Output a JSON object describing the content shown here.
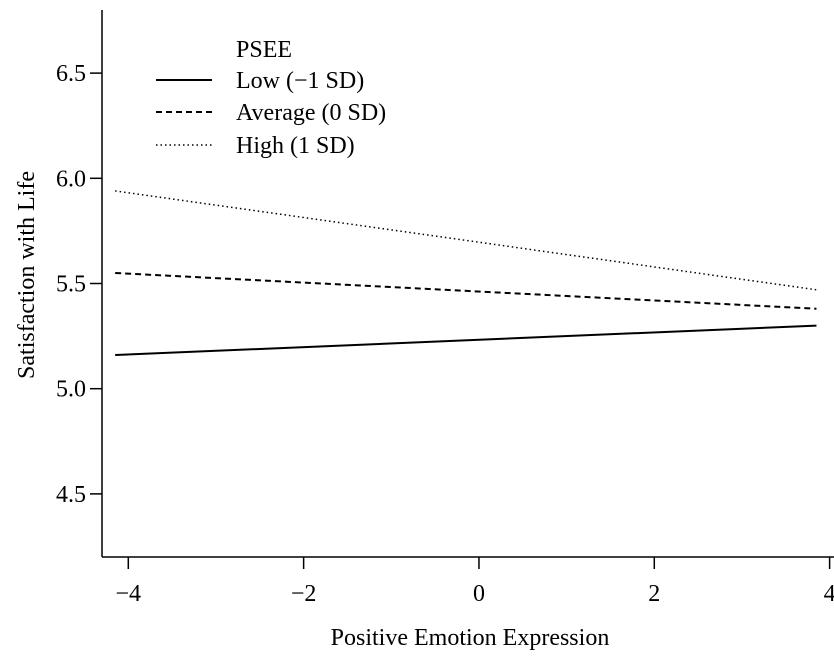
{
  "chart_data": {
    "type": "line",
    "xlabel": "Positive Emotion Expression",
    "ylabel": "Satisfaction with Life",
    "xlim": [
      -4.3,
      4.05
    ],
    "ylim": [
      4.2,
      6.8
    ],
    "xticks": [
      -4,
      -2,
      0,
      2,
      4
    ],
    "xtick_labels": [
      "−4",
      "−2",
      "0",
      "2",
      "4"
    ],
    "yticks": [
      4.5,
      5.0,
      5.5,
      6.0,
      6.5
    ],
    "ytick_labels": [
      "4.5",
      "5.0",
      "5.5",
      "6.0",
      "6.5"
    ],
    "grid": false,
    "legend": {
      "title": "PSEE",
      "position": "top-left"
    },
    "series": [
      {
        "name": "Low (−1 SD)",
        "style": "solid",
        "x": [
          -4.15,
          3.85
        ],
        "y": [
          5.16,
          5.3
        ]
      },
      {
        "name": "Average (0 SD)",
        "style": "dashed",
        "x": [
          -4.15,
          3.85
        ],
        "y": [
          5.55,
          5.38
        ]
      },
      {
        "name": "High (1 SD)",
        "style": "dotted",
        "x": [
          -4.15,
          3.85
        ],
        "y": [
          5.94,
          5.47
        ]
      }
    ]
  }
}
